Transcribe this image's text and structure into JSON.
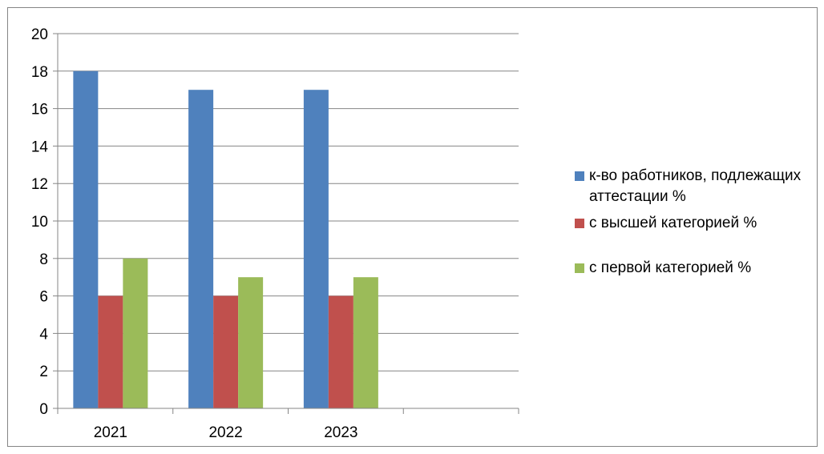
{
  "chart_data": {
    "type": "bar",
    "categories": [
      "2021",
      "2022",
      "2023",
      ""
    ],
    "series": [
      {
        "name": "к-во работников, подлежащих аттестации %",
        "values": [
          18,
          17,
          17,
          null
        ],
        "color": "#4F81BD"
      },
      {
        "name": "с высшей категорией %",
        "values": [
          6,
          6,
          6,
          null
        ],
        "color": "#C0504D"
      },
      {
        "name": "с первой категорией %",
        "values": [
          8,
          7,
          7,
          null
        ],
        "color": "#9BBB59"
      }
    ],
    "ylim": [
      0,
      20
    ],
    "yticks": [
      "0",
      "2",
      "4",
      "6",
      "8",
      "10",
      "12",
      "14",
      "16",
      "18",
      "20"
    ],
    "grid": true,
    "legend_position": "right"
  }
}
